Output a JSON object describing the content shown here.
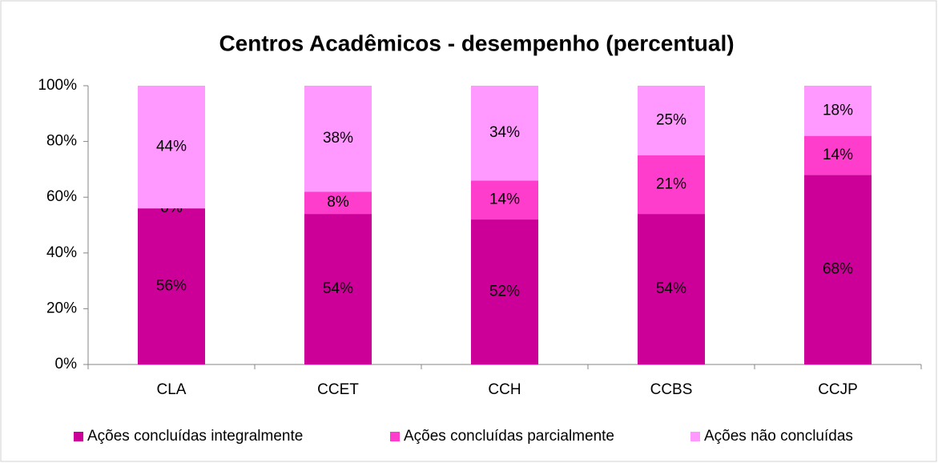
{
  "chart_data": {
    "type": "bar",
    "stacked": true,
    "title": "Centros Acadêmicos - desempenho (percentual)",
    "categories": [
      "CLA",
      "CCET",
      "CCH",
      "CCBS",
      "CCJP"
    ],
    "series": [
      {
        "name": "Ações concluídas integralmente",
        "color": "#cc0099",
        "values": [
          56,
          54,
          52,
          54,
          68
        ],
        "value_labels": [
          "56%",
          "54%",
          "52%",
          "54%",
          "68%"
        ]
      },
      {
        "name": "Ações concluídas parcialmente",
        "color": "#ff3dcc",
        "values": [
          0,
          8,
          14,
          21,
          14
        ],
        "value_labels": [
          "0%",
          "8%",
          "14%",
          "21%",
          "14%"
        ]
      },
      {
        "name": "Ações não concluídas",
        "color": "#ff99ff",
        "values": [
          44,
          38,
          34,
          25,
          18
        ],
        "value_labels": [
          "44%",
          "38%",
          "34%",
          "25%",
          "18%"
        ]
      }
    ],
    "ylim": [
      0,
      100
    ],
    "yticks": [
      {
        "value": 0,
        "label": "0%"
      },
      {
        "value": 20,
        "label": "20%"
      },
      {
        "value": 40,
        "label": "40%"
      },
      {
        "value": 60,
        "label": "60%"
      },
      {
        "value": 80,
        "label": "80%"
      },
      {
        "value": 100,
        "label": "100%"
      }
    ],
    "grid": false,
    "legend": "bottom"
  }
}
